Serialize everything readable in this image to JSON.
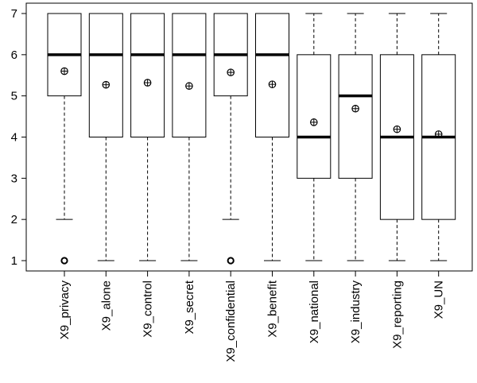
{
  "chart_data": {
    "type": "boxplot",
    "title": "",
    "xlabel": "",
    "ylabel": "",
    "ylim": [
      0.8,
      7.2
    ],
    "y_ticks": [
      1,
      2,
      3,
      4,
      5,
      6,
      7
    ],
    "grid": false,
    "legend": "none",
    "colors": {
      "box_fill": "#ffffff",
      "stroke": "#000000",
      "background": "#ffffff"
    },
    "categories": [
      "X9_privacy",
      "X9_alone",
      "X9_control",
      "X9_secret",
      "X9_confidential",
      "X9_benefit",
      "X9_national",
      "X9_industry",
      "X9_reporting",
      "X9_UN"
    ],
    "boxes": [
      {
        "whisker_low": 2,
        "q1": 5,
        "median": 6,
        "q3": 7,
        "whisker_high": 7,
        "mean": 5.6,
        "outliers": [
          1
        ]
      },
      {
        "whisker_low": 1,
        "q1": 4,
        "median": 6,
        "q3": 7,
        "whisker_high": 7,
        "mean": 5.27,
        "outliers": []
      },
      {
        "whisker_low": 1,
        "q1": 4,
        "median": 6,
        "q3": 7,
        "whisker_high": 7,
        "mean": 5.32,
        "outliers": []
      },
      {
        "whisker_low": 1,
        "q1": 4,
        "median": 6,
        "q3": 7,
        "whisker_high": 7,
        "mean": 5.24,
        "outliers": []
      },
      {
        "whisker_low": 2,
        "q1": 5,
        "median": 6,
        "q3": 7,
        "whisker_high": 7,
        "mean": 5.57,
        "outliers": [
          1
        ]
      },
      {
        "whisker_low": 1,
        "q1": 4,
        "median": 6,
        "q3": 7,
        "whisker_high": 7,
        "mean": 5.28,
        "outliers": []
      },
      {
        "whisker_low": 1,
        "q1": 3,
        "median": 4,
        "q3": 6,
        "whisker_high": 7,
        "mean": 4.36,
        "outliers": []
      },
      {
        "whisker_low": 1,
        "q1": 3,
        "median": 5,
        "q3": 6,
        "whisker_high": 7,
        "mean": 4.69,
        "outliers": []
      },
      {
        "whisker_low": 1,
        "q1": 2,
        "median": 4,
        "q3": 6,
        "whisker_high": 7,
        "mean": 4.19,
        "outliers": []
      },
      {
        "whisker_low": 1,
        "q1": 2,
        "median": 4,
        "q3": 6,
        "whisker_high": 7,
        "mean": 4.07,
        "outliers": []
      }
    ]
  }
}
